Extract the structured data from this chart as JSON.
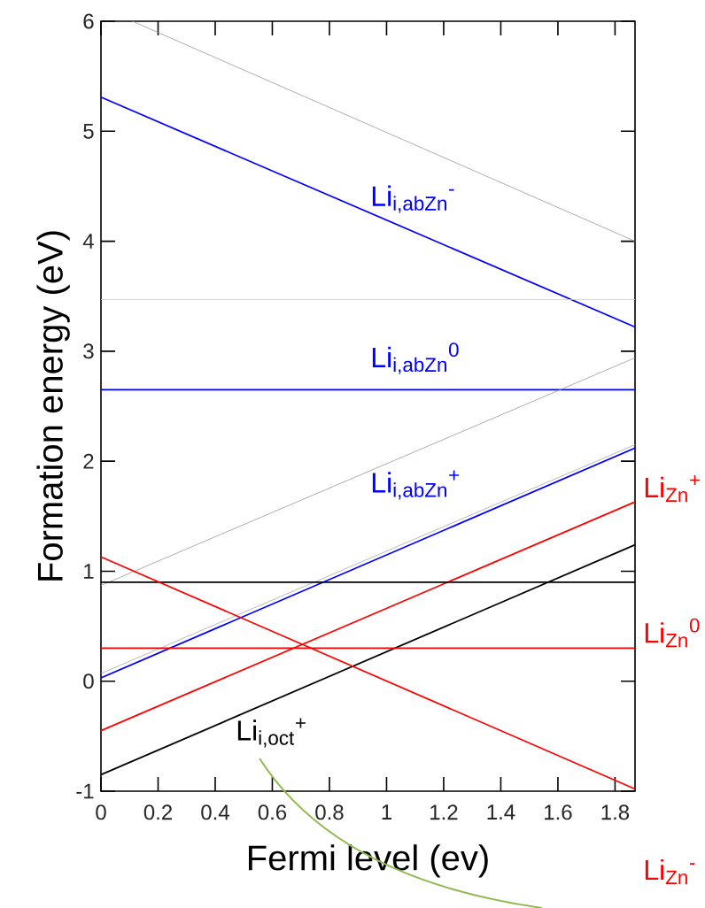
{
  "chart_data": {
    "type": "line",
    "xlabel": "Fermi level (ev)",
    "ylabel": "Formation energy (eV)",
    "xlim": [
      0,
      1.87
    ],
    "ylim": [
      -1,
      6
    ],
    "xticks": [
      0,
      0.2,
      0.4,
      0.6,
      0.8,
      1,
      1.2,
      1.4,
      1.6,
      1.8
    ],
    "yticks": [
      -1,
      0,
      1,
      2,
      3,
      4,
      5,
      6
    ],
    "grid": false,
    "series": [
      {
        "color": "#999999",
        "x": [
          0.11,
          1.87
        ],
        "values": [
          6,
          4.0
        ]
      },
      {
        "color": "#0000ff",
        "x": [
          0,
          1.87
        ],
        "values": [
          5.31,
          3.22
        ]
      },
      {
        "color": "#cccccc",
        "x": [
          0,
          1.87
        ],
        "values": [
          3.47,
          3.47
        ]
      },
      {
        "color": "#0000ff",
        "x": [
          0,
          1.87
        ],
        "values": [
          2.65,
          2.65
        ]
      },
      {
        "color": "#999999",
        "x": [
          0,
          1.87
        ],
        "values": [
          0.87,
          2.94
        ]
      },
      {
        "color": "#aaaaaa",
        "x": [
          0,
          1.87
        ],
        "values": [
          0.07,
          2.15
        ]
      },
      {
        "color": "#0000ff",
        "x": [
          0,
          1.87
        ],
        "values": [
          0.03,
          2.12
        ]
      },
      {
        "color": "#ff0000",
        "x": [
          0,
          1.87
        ],
        "values": [
          -0.45,
          1.63
        ]
      },
      {
        "color": "#000000",
        "x": [
          0,
          1.87
        ],
        "values": [
          -0.85,
          1.24
        ]
      },
      {
        "color": "#000000",
        "x": [
          0,
          1.87
        ],
        "values": [
          0.9,
          0.9
        ]
      },
      {
        "color": "#ff0000",
        "x": [
          0,
          1.87
        ],
        "values": [
          0.3,
          0.3
        ]
      },
      {
        "color": "#ff0000",
        "x": [
          0,
          1.87
        ],
        "values": [
          1.13,
          -0.98
        ]
      }
    ],
    "annotations": [
      "Li$_{i,abZn}$$^{-}$",
      "Li$_{i,abZn}$$^{0}$",
      "Li$_{i,abZn}$$^{+}$",
      "Li$_{i,oct}$$^{+}$",
      "Li$_{Zn}$$^{+}$",
      "Li$_{Zn}$$^{0}$",
      "Li$_{Zn}$$^{-}$"
    ]
  }
}
